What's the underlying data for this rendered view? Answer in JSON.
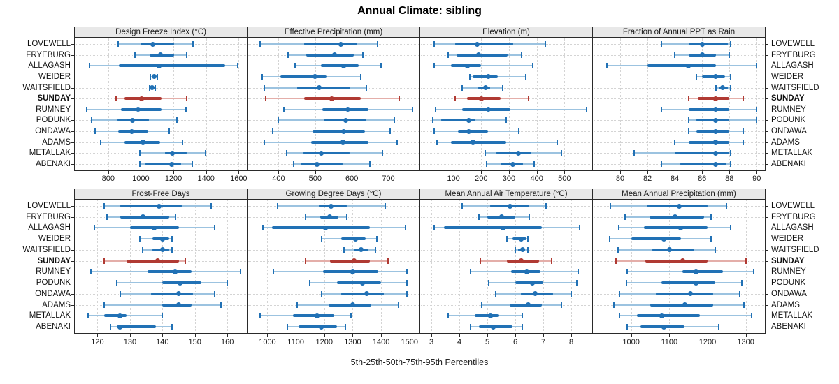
{
  "title": "Annual Climate: sibling",
  "caption": "5th-25th-50th-75th-95th Percentiles",
  "stations": [
    "LOVEWELL",
    "FRYEBURG",
    "ALLAGASH",
    "WEIDER",
    "WAITSFIELD",
    "SUNDAY",
    "RUMNEY",
    "PODUNK",
    "ONDAWA",
    "ADAMS",
    "METALLAK",
    "ABENAKI"
  ],
  "highlight_station": "SUNDAY",
  "percentile_labels": [
    "5th",
    "25th",
    "50th",
    "75th",
    "95th"
  ],
  "colors": {
    "normal": "#2171b5",
    "normal_light": "#9cc3e0",
    "highlight": "#b03a33",
    "highlight_light": "#e4aea9",
    "strip_bg": "#e8e8e8",
    "grid": "#d4d4d4",
    "border": "#2a2a2a"
  },
  "chart_data": [
    {
      "type": "interval-dotplot",
      "title": "Design Freeze Index (°C)",
      "xlim": [
        595,
        1650
      ],
      "ticks": [
        800,
        1000,
        1200,
        1400,
        1600
      ],
      "series": [
        [
          860,
          1000,
          1075,
          1205,
          1320
        ],
        [
          965,
          1055,
          1120,
          1205,
          1280
        ],
        [
          685,
          865,
          1110,
          1515,
          1595
        ],
        [
          1060,
          1070,
          1080,
          1095,
          1100
        ],
        [
          1055,
          1063,
          1071,
          1084,
          1090
        ],
        [
          850,
          900,
          1005,
          1125,
          1280
        ],
        [
          670,
          880,
          985,
          1125,
          1275
        ],
        [
          700,
          855,
          950,
          1050,
          1220
        ],
        [
          720,
          860,
          945,
          1045,
          1175
        ],
        [
          755,
          900,
          1015,
          1120,
          1255
        ],
        [
          995,
          1150,
          1195,
          1280,
          1395
        ],
        [
          995,
          1030,
          1190,
          1245,
          1315
        ]
      ]
    },
    {
      "type": "interval-dotplot",
      "title": "Effective Precipitation (mm)",
      "xlim": [
        315,
        785
      ],
      "ticks": [
        400,
        500,
        600,
        700
      ],
      "series": [
        [
          350,
          470,
          570,
          615,
          670
        ],
        [
          425,
          476,
          552,
          605,
          630
        ],
        [
          445,
          515,
          578,
          618,
          680
        ],
        [
          355,
          405,
          500,
          530,
          625
        ],
        [
          360,
          450,
          510,
          595,
          640
        ],
        [
          365,
          470,
          545,
          625,
          730
        ],
        [
          415,
          520,
          590,
          645,
          765
        ],
        [
          400,
          524,
          584,
          639,
          717
        ],
        [
          383,
          493,
          577,
          636,
          704
        ],
        [
          360,
          489,
          575,
          645,
          723
        ],
        [
          422,
          468,
          517,
          594,
          683
        ],
        [
          441,
          461,
          506,
          574,
          650
        ]
      ]
    },
    {
      "type": "interval-dotplot",
      "title": "Elevation (m)",
      "xlim": [
        -20,
        600
      ],
      "ticks": [
        100,
        200,
        300,
        400,
        500
      ],
      "series": [
        [
          30,
          105,
          185,
          315,
          430
        ],
        [
          80,
          110,
          190,
          295,
          345
        ],
        [
          30,
          90,
          150,
          200,
          385
        ],
        [
          160,
          170,
          225,
          260,
          360
        ],
        [
          130,
          190,
          215,
          233,
          277
        ],
        [
          105,
          150,
          200,
          270,
          370
        ],
        [
          35,
          130,
          225,
          305,
          580
        ],
        [
          25,
          55,
          155,
          180,
          290
        ],
        [
          30,
          115,
          155,
          225,
          335
        ],
        [
          40,
          90,
          170,
          290,
          475
        ],
        [
          215,
          255,
          335,
          380,
          488
        ],
        [
          220,
          270,
          315,
          350,
          390
        ]
      ]
    },
    {
      "type": "interval-dotplot",
      "title": "Fraction of Annual PPT as Rain",
      "xlim": [
        78,
        90.6
      ],
      "ticks": [
        80,
        82,
        84,
        86,
        88,
        90
      ],
      "series": [
        [
          83,
          85,
          86,
          87.9,
          88.1
        ],
        [
          84,
          85,
          86,
          87,
          88
        ],
        [
          79,
          82,
          85,
          87,
          90
        ],
        [
          85.6,
          86,
          87,
          87.7,
          88.1
        ],
        [
          87,
          87.2,
          87.5,
          87.9,
          88.1
        ],
        [
          85,
          85.7,
          87,
          88,
          89
        ],
        [
          83,
          85,
          87,
          88,
          90
        ],
        [
          85,
          85.6,
          87,
          88,
          90
        ],
        [
          85,
          85.6,
          87,
          88,
          89
        ],
        [
          84,
          85,
          87,
          88,
          89
        ],
        [
          81,
          84,
          87,
          88,
          88.1
        ],
        [
          83,
          84.4,
          87,
          87.8,
          88.1
        ]
      ]
    },
    {
      "type": "interval-dotplot",
      "title": "Frost-Free Days",
      "xlim": [
        113,
        166
      ],
      "ticks": [
        120,
        130,
        140,
        150,
        160
      ],
      "series": [
        [
          122,
          127,
          139,
          146,
          155
        ],
        [
          123,
          127,
          134,
          142,
          144
        ],
        [
          119,
          130,
          137.5,
          145,
          156
        ],
        [
          133,
          137,
          140,
          142,
          143
        ],
        [
          134,
          137,
          140,
          142,
          143
        ],
        [
          122,
          129,
          138.5,
          145,
          147
        ],
        [
          118,
          135.5,
          144,
          149,
          164
        ],
        [
          126,
          140,
          145.5,
          152,
          160
        ],
        [
          127,
          136.5,
          145,
          149.5,
          156
        ],
        [
          122,
          140,
          145,
          149,
          158
        ],
        [
          117,
          122,
          127,
          129,
          140
        ],
        [
          124,
          126,
          127,
          138,
          143
        ]
      ]
    },
    {
      "type": "interval-dotplot",
      "title": "Growing Degree Days (°C)",
      "xlim": [
        930,
        1535
      ],
      "ticks": [
        1000,
        1100,
        1200,
        1300,
        1400,
        1500
      ],
      "series": [
        [
          1035,
          1180,
          1225,
          1280,
          1415
        ],
        [
          1135,
          1185,
          1220,
          1250,
          1280
        ],
        [
          985,
          1015,
          1205,
          1360,
          1485
        ],
        [
          1190,
          1260,
          1310,
          1345,
          1385
        ],
        [
          1270,
          1303,
          1330,
          1356,
          1380
        ],
        [
          1135,
          1220,
          1305,
          1360,
          1425
        ],
        [
          1020,
          1195,
          1300,
          1390,
          1490
        ],
        [
          1150,
          1245,
          1335,
          1400,
          1490
        ],
        [
          1190,
          1260,
          1350,
          1410,
          1490
        ],
        [
          1105,
          1215,
          1300,
          1365,
          1460
        ],
        [
          975,
          1090,
          1175,
          1235,
          1295
        ],
        [
          1070,
          1110,
          1190,
          1245,
          1275
        ]
      ]
    },
    {
      "type": "interval-dotplot",
      "title": "Mean Annual Air Temperature (°C)",
      "xlim": [
        2.6,
        8.75
      ],
      "ticks": [
        3,
        4,
        5,
        6,
        7,
        8
      ],
      "series": [
        [
          4.1,
          5.1,
          5.8,
          6.5,
          7.1
        ],
        [
          4.7,
          5.0,
          5.5,
          6.0,
          6.5
        ],
        [
          3.1,
          3.45,
          5.55,
          6.95,
          8.3
        ],
        [
          5.7,
          5.9,
          6.2,
          6.4,
          6.45
        ],
        [
          6.0,
          6.1,
          6.25,
          6.35,
          6.45
        ],
        [
          4.75,
          5.7,
          6.2,
          6.85,
          7.3
        ],
        [
          4.4,
          5.85,
          6.4,
          6.9,
          8.25
        ],
        [
          5.05,
          6.0,
          6.6,
          7.0,
          8.2
        ],
        [
          5.3,
          6.2,
          6.7,
          7.35,
          8.0
        ],
        [
          4.8,
          5.8,
          6.45,
          6.95,
          7.65
        ],
        [
          3.6,
          4.55,
          5.1,
          5.4,
          6.25
        ],
        [
          4.4,
          4.7,
          5.2,
          5.9,
          6.25
        ]
      ]
    },
    {
      "type": "interval-dotplot",
      "title": "Mean Annual Precipitation (mm)",
      "xlim": [
        900,
        1350
      ],
      "ticks": [
        1000,
        1100,
        1200,
        1300
      ],
      "series": [
        [
          945,
          1040,
          1125,
          1200,
          1250
        ],
        [
          985,
          1048,
          1115,
          1190,
          1210
        ],
        [
          967,
          1033,
          1130,
          1200,
          1260
        ],
        [
          943,
          1000,
          1085,
          1130,
          1210
        ],
        [
          965,
          1055,
          1100,
          1165,
          1220
        ],
        [
          960,
          1037,
          1135,
          1200,
          1300
        ],
        [
          990,
          1135,
          1170,
          1240,
          1320
        ],
        [
          988,
          1080,
          1170,
          1220,
          1290
        ],
        [
          970,
          1065,
          1155,
          1215,
          1285
        ],
        [
          955,
          1050,
          1140,
          1215,
          1295
        ],
        [
          970,
          1015,
          1080,
          1180,
          1315
        ],
        [
          990,
          1025,
          1085,
          1140,
          1230
        ]
      ]
    }
  ]
}
